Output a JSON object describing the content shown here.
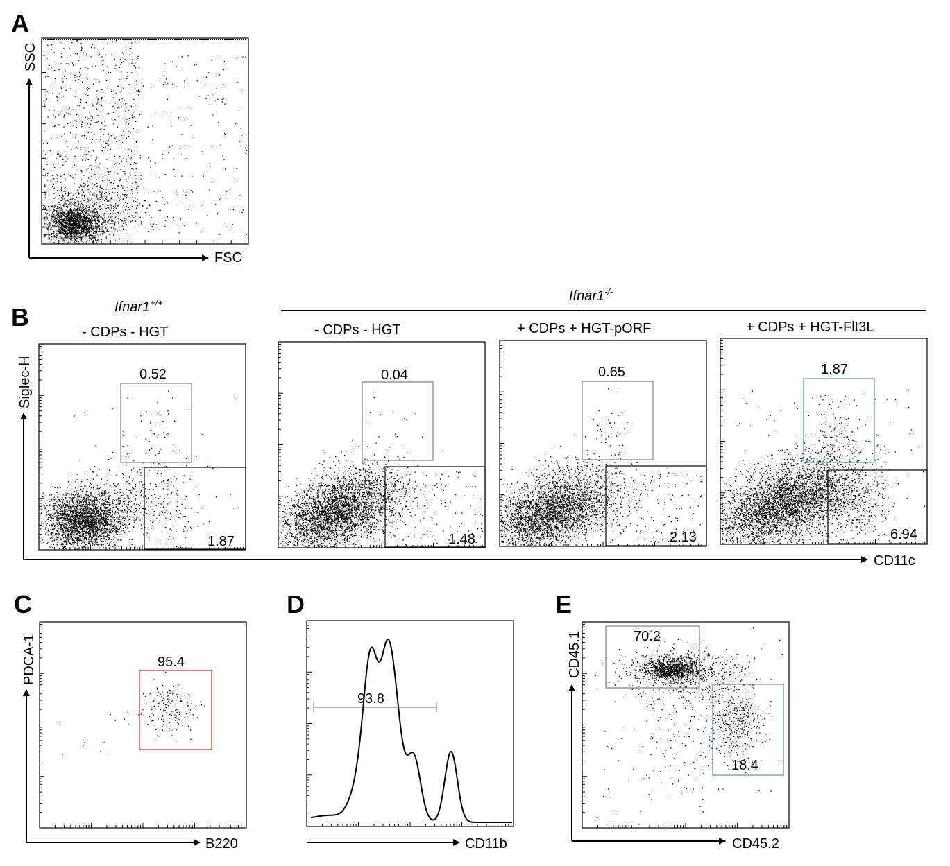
{
  "figure": {
    "panels": {
      "A": {
        "letter": "A",
        "x_label": "FSC",
        "y_label": "SSC"
      },
      "B": {
        "letter": "B",
        "x_label": "CD11c",
        "y_label": "Siglec-H",
        "genotype_wt": "Ifnar1",
        "genotype_wt_sup": "+/+",
        "genotype_ko": "Ifnar1",
        "genotype_ko_sup": "-/-",
        "conditions": [
          {
            "title": "- CDPs - HGT",
            "upper_gate": "0.52",
            "lower_gate": "1.87"
          },
          {
            "title": "- CDPs - HGT",
            "upper_gate": "0.04",
            "lower_gate": "1.48"
          },
          {
            "title": "+ CDPs + HGT-pORF",
            "upper_gate": "0.65",
            "lower_gate": "2.13"
          },
          {
            "title": "+ CDPs + HGT-Flt3L",
            "upper_gate": "1.87",
            "lower_gate": "6.94"
          }
        ]
      },
      "C": {
        "letter": "C",
        "x_label": "B220",
        "y_label": "PDCA-1",
        "gate_value": "95.4"
      },
      "D": {
        "letter": "D",
        "x_label": "CD11b",
        "gate_value": "93.8"
      },
      "E": {
        "letter": "E",
        "x_label": "CD45.2",
        "y_label": "CD45.1",
        "upper_gate": "70.2",
        "lower_gate": "18.4"
      }
    },
    "colors": {
      "ink": "#000000",
      "gate_gray": "#808080",
      "gate_red": "#b03030",
      "gate_teal": "#4a9a9a"
    }
  }
}
